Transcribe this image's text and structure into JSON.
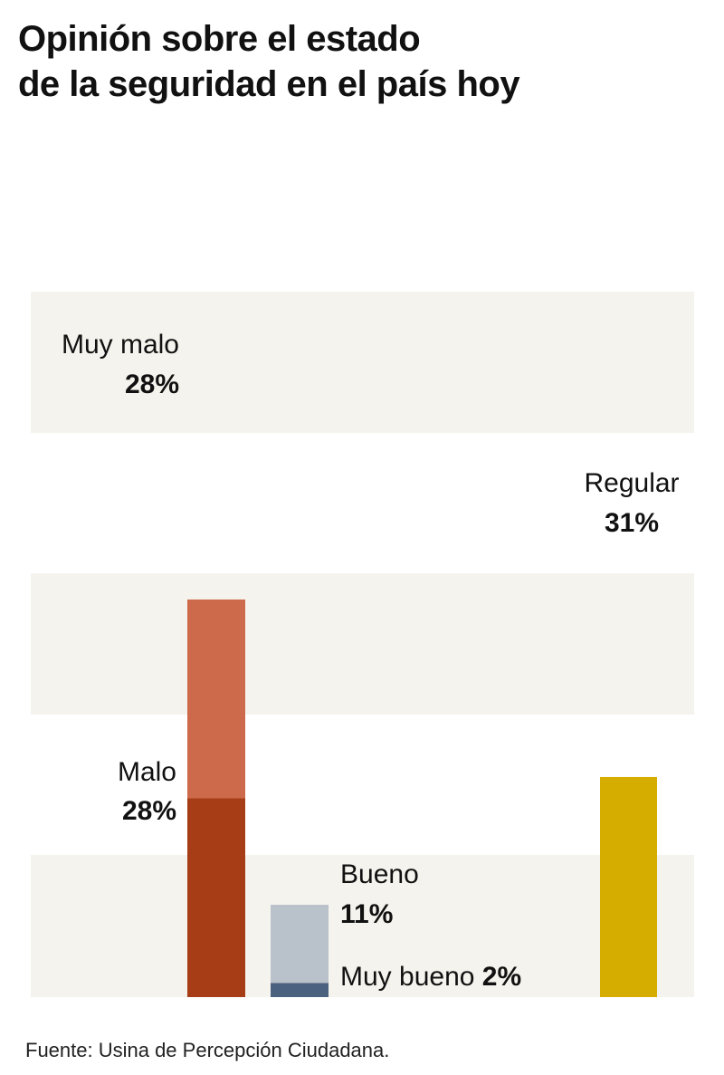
{
  "title_line1": "Opinión sobre el estado",
  "title_line2": "de la seguridad en el país hoy",
  "source": "Fuente: Usina de Percepción Ciudadana.",
  "colors": {
    "muy_malo": "#CE6A4C",
    "malo": "#A63D17",
    "bueno": "#B9C1CB",
    "muy_bueno": "#4B6180",
    "regular": "#D5AC00",
    "band": "#F5F3ED"
  },
  "chart_data": {
    "type": "bar",
    "stacked": true,
    "unit": "%",
    "grid": false,
    "series": [
      {
        "key": "malo",
        "name": "Malo",
        "value": 28,
        "value_label": "28%",
        "group": "negativo"
      },
      {
        "key": "muy_malo",
        "name": "Muy malo",
        "value": 28,
        "value_label": "28%",
        "group": "negativo"
      },
      {
        "key": "muy_bueno",
        "name": "Muy bueno",
        "value": 2,
        "value_label": "2%",
        "group": "positivo"
      },
      {
        "key": "bueno",
        "name": "Bueno",
        "value": 11,
        "value_label": "11%",
        "group": "positivo"
      },
      {
        "key": "regular",
        "name": "Regular",
        "value": 31,
        "value_label": "31%",
        "group": "regular"
      }
    ],
    "ylim": [
      0,
      56
    ]
  }
}
